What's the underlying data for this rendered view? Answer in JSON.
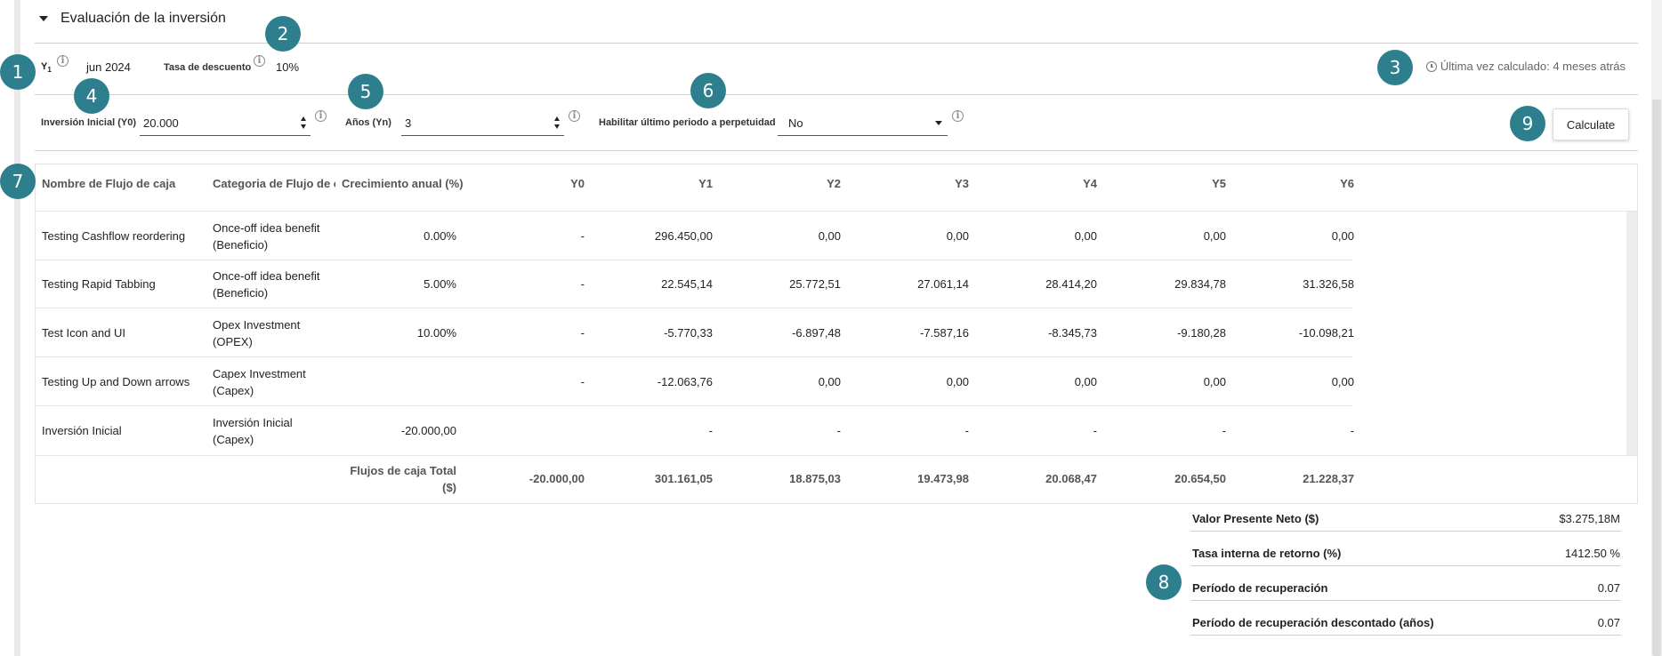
{
  "section": {
    "title": "Evaluación de la inversión"
  },
  "params": {
    "y1_label_main": "Y",
    "y1_label_sub": "1",
    "y1_value": "jun 2024",
    "discount_label": "Tasa de descuento",
    "discount_value": "10%",
    "last_calculated": "Última vez calculado: 4 meses atrás"
  },
  "inputs": {
    "initial_investment_label": "Inversión Inicial (Y0)",
    "initial_investment_value": "20.000",
    "years_label": "Años (Yn)",
    "years_value": "3",
    "perpetuity_label": "Habilitar último periodo a perpetuidad",
    "perpetuity_value": "No",
    "calculate_label": "Calculate"
  },
  "badges": [
    "1",
    "2",
    "3",
    "4",
    "5",
    "6",
    "7",
    "8",
    "9"
  ],
  "table": {
    "headers": [
      "Nombre de Flujo de caja",
      "Categoria de Flujo de c",
      "Crecimiento anual (%)",
      "Y0",
      "Y1",
      "Y2",
      "Y3",
      "Y4",
      "Y5",
      "Y6"
    ],
    "rows": [
      {
        "name": "Testing Cashflow reordering",
        "cat1": "Once-off idea benefit",
        "cat2": "(Beneficio)",
        "growth": "0.00%",
        "values": [
          "-",
          "296.450,00",
          "0,00",
          "0,00",
          "0,00",
          "0,00",
          "0,00"
        ]
      },
      {
        "name": "Testing Rapid Tabbing",
        "cat1": "Once-off idea benefit",
        "cat2": "(Beneficio)",
        "growth": "5.00%",
        "values": [
          "-",
          "22.545,14",
          "25.772,51",
          "27.061,14",
          "28.414,20",
          "29.834,78",
          "31.326,58"
        ]
      },
      {
        "name": "Test Icon and UI",
        "cat1": "Opex Investment",
        "cat2": "(OPEX)",
        "growth": "10.00%",
        "values": [
          "-",
          "-5.770,33",
          "-6.897,48",
          "-7.587,16",
          "-8.345,73",
          "-9.180,28",
          "-10.098,21"
        ]
      },
      {
        "name": "Testing Up and Down arrows",
        "cat1": "Capex Investment",
        "cat2": "(Capex)",
        "growth": "",
        "values": [
          "-",
          "-12.063,76",
          "0,00",
          "0,00",
          "0,00",
          "0,00",
          "0,00"
        ]
      },
      {
        "name": "Inversión Inicial",
        "cat1": "Inversión Inicial",
        "cat2": "(Capex)",
        "growth": "-20.000,00",
        "values": [
          "",
          "-",
          "-",
          "-",
          "-",
          "-",
          "-"
        ]
      }
    ],
    "total_label_1": "Flujos de caja Total",
    "total_label_2": "($)",
    "totals": [
      "-20.000,00",
      "301.161,05",
      "18.875,03",
      "19.473,98",
      "20.068,47",
      "20.654,50",
      "21.228,37"
    ]
  },
  "summary": [
    {
      "label": "Valor Presente Neto ($)",
      "value": "$3.275,18M"
    },
    {
      "label": "Tasa interna de retorno (%)",
      "value": "1412.50 %"
    },
    {
      "label": "Período de recuperación",
      "value": "0.07"
    },
    {
      "label": "Período de recuperación descontado (años)",
      "value": "0.07"
    }
  ],
  "colors": {
    "badge": "#2e7f8e"
  }
}
